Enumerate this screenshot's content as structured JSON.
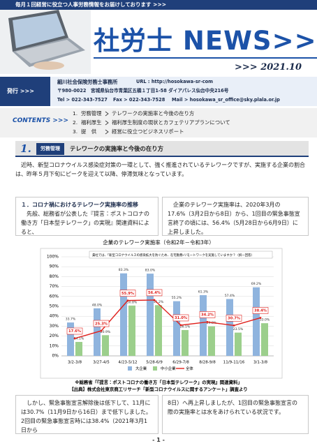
{
  "banner": {
    "tagline": "毎月１回経営に役立つ人事労務情報をお届けしております >>>",
    "title": "社労士 NEWS>>>",
    "date": ">>> 2021.10"
  },
  "publisher": {
    "label": "発行 >>>",
    "name": "細川社会保険労務士事務所",
    "url": "URL : http://hosokawa-sr-com",
    "address": "〒980-0022　宮城県仙台市青葉区五橋１丁目1-58 ダイアパレス仙台中央216号",
    "tel": "Tel > 022-343-7527",
    "fax": "Fax > 022-343-7528",
    "mail": "Mail > hosokawa_sr_office@sky.plala.or.jp"
  },
  "contents": {
    "label": "CONTENTS >>>",
    "items": [
      {
        "number": "1.",
        "category": "労務管理",
        "title": "テレワークの実施率と今後の在り方"
      },
      {
        "number": "2.",
        "category": "福利厚生",
        "title": "福利厚生制度の現状とカフェテリアプランについて"
      },
      {
        "number": "3.",
        "category": "提　供",
        "title": "経営に役立つビジネスリポート"
      }
    ]
  },
  "section": {
    "number": "1.",
    "category": "労務管理",
    "title": "テレワークの実施率と今後の在り方",
    "intro": "近時、新型コロナウイルス感染症対策の一環として、強く推進されているテレワークですが、実施する企業の割合は、昨年５月下旬にピークを迎えて以降、停滞気味となっています。",
    "left_heading": "１．コロナ禍におけるテレワーク実施率の推移",
    "left_text": "先般、総務省が公表した『提言：ポストコロナの働き方「日本型テレワーク」の実現』関連資料によると、",
    "right_text": "企業のテレワーク実施率は、2020年3月の17.6%（3月2日から8日）から、1回目の緊急事態宣言終了の頃には、56.4%（5月28日から6月9日）に上昇しました。",
    "bottom_left": "しかし、緊急事態宣言解除後は低下して、11月には30.7%（11月9日から16日）まで低下しました。2回目の緊急事態宣言時には38.4%（2021年3月1日から",
    "bottom_right": "8日）へ再上昇しましたが、1回目の緊急事態宣言の際の実施率とは水をあけられている状況です。"
  },
  "chart_data": {
    "type": "bar",
    "title": "企業のテレワーク実施率（令和2年－令和3年）",
    "note": "貴社では、「新型コロナウイルスの感染拡大を防ぐため、在宅勤務・リモートワークを実施していますか？（択一回答）",
    "categories": [
      "3/2-3/8",
      "3/27-4/5",
      "4/23-5/12",
      "5/28-6/9",
      "6/29-7/8",
      "8/28-9/8",
      "11/9-11/16",
      "3/1-3/8"
    ],
    "series": [
      {
        "name": "大企業",
        "type": "bar",
        "color": "#8fb4de",
        "values": [
          33.7,
          48.0,
          83.3,
          83.0,
          55.2,
          61.3,
          57.4,
          69.2
        ],
        "value_labels": [
          "33.7%",
          "48.0%",
          "83.3%",
          "83.0%",
          "55.2%",
          "61.3%",
          "57.4%",
          "69.2%"
        ]
      },
      {
        "name": "中小企業",
        "type": "bar",
        "color": "#9ccf8c",
        "values": [
          14.1,
          20.9,
          50.8,
          51.2,
          26.1,
          29.8,
          23.5,
          33.0
        ],
        "value_labels": [
          "14.1%",
          "20.9%",
          "50.8%",
          "51.2%",
          "26.1%",
          "29.8%",
          "23.5%",
          "33.0%"
        ]
      },
      {
        "name": "全体",
        "type": "line",
        "color": "#e0201c",
        "values": [
          17.6,
          25.3,
          55.9,
          56.4,
          31.0,
          34.2,
          30.7,
          38.4
        ],
        "value_labels": [
          "17.6%",
          "25.3%",
          "55.9%",
          "56.4%",
          "31.0%",
          "34.2%",
          "30.7%",
          "38.4%"
        ]
      }
    ],
    "ylim": [
      0,
      100
    ],
    "yticks": [
      {
        "value": 0,
        "label": "0%"
      },
      {
        "value": 10,
        "label": "10%"
      },
      {
        "value": 20,
        "label": "20%"
      },
      {
        "value": 30,
        "label": "30%"
      },
      {
        "value": 40,
        "label": "40%"
      },
      {
        "value": 50,
        "label": "50%"
      },
      {
        "value": 60,
        "label": "60%"
      },
      {
        "value": 70,
        "label": "70%"
      },
      {
        "value": 80,
        "label": "80%"
      },
      {
        "value": 90,
        "label": "90%"
      },
      {
        "value": 100,
        "label": "100%"
      }
    ],
    "grid": true,
    "legend": "bottom",
    "source_note": "※総務省「『提言：ポストコロナの働き方「日本型テレワーク」の実現』関連資料」",
    "source": "【出典】株式会社東京商工リサーチ「新型コロナウイルスに関するアンケート」調査より"
  },
  "page_number": "- 1 -"
}
